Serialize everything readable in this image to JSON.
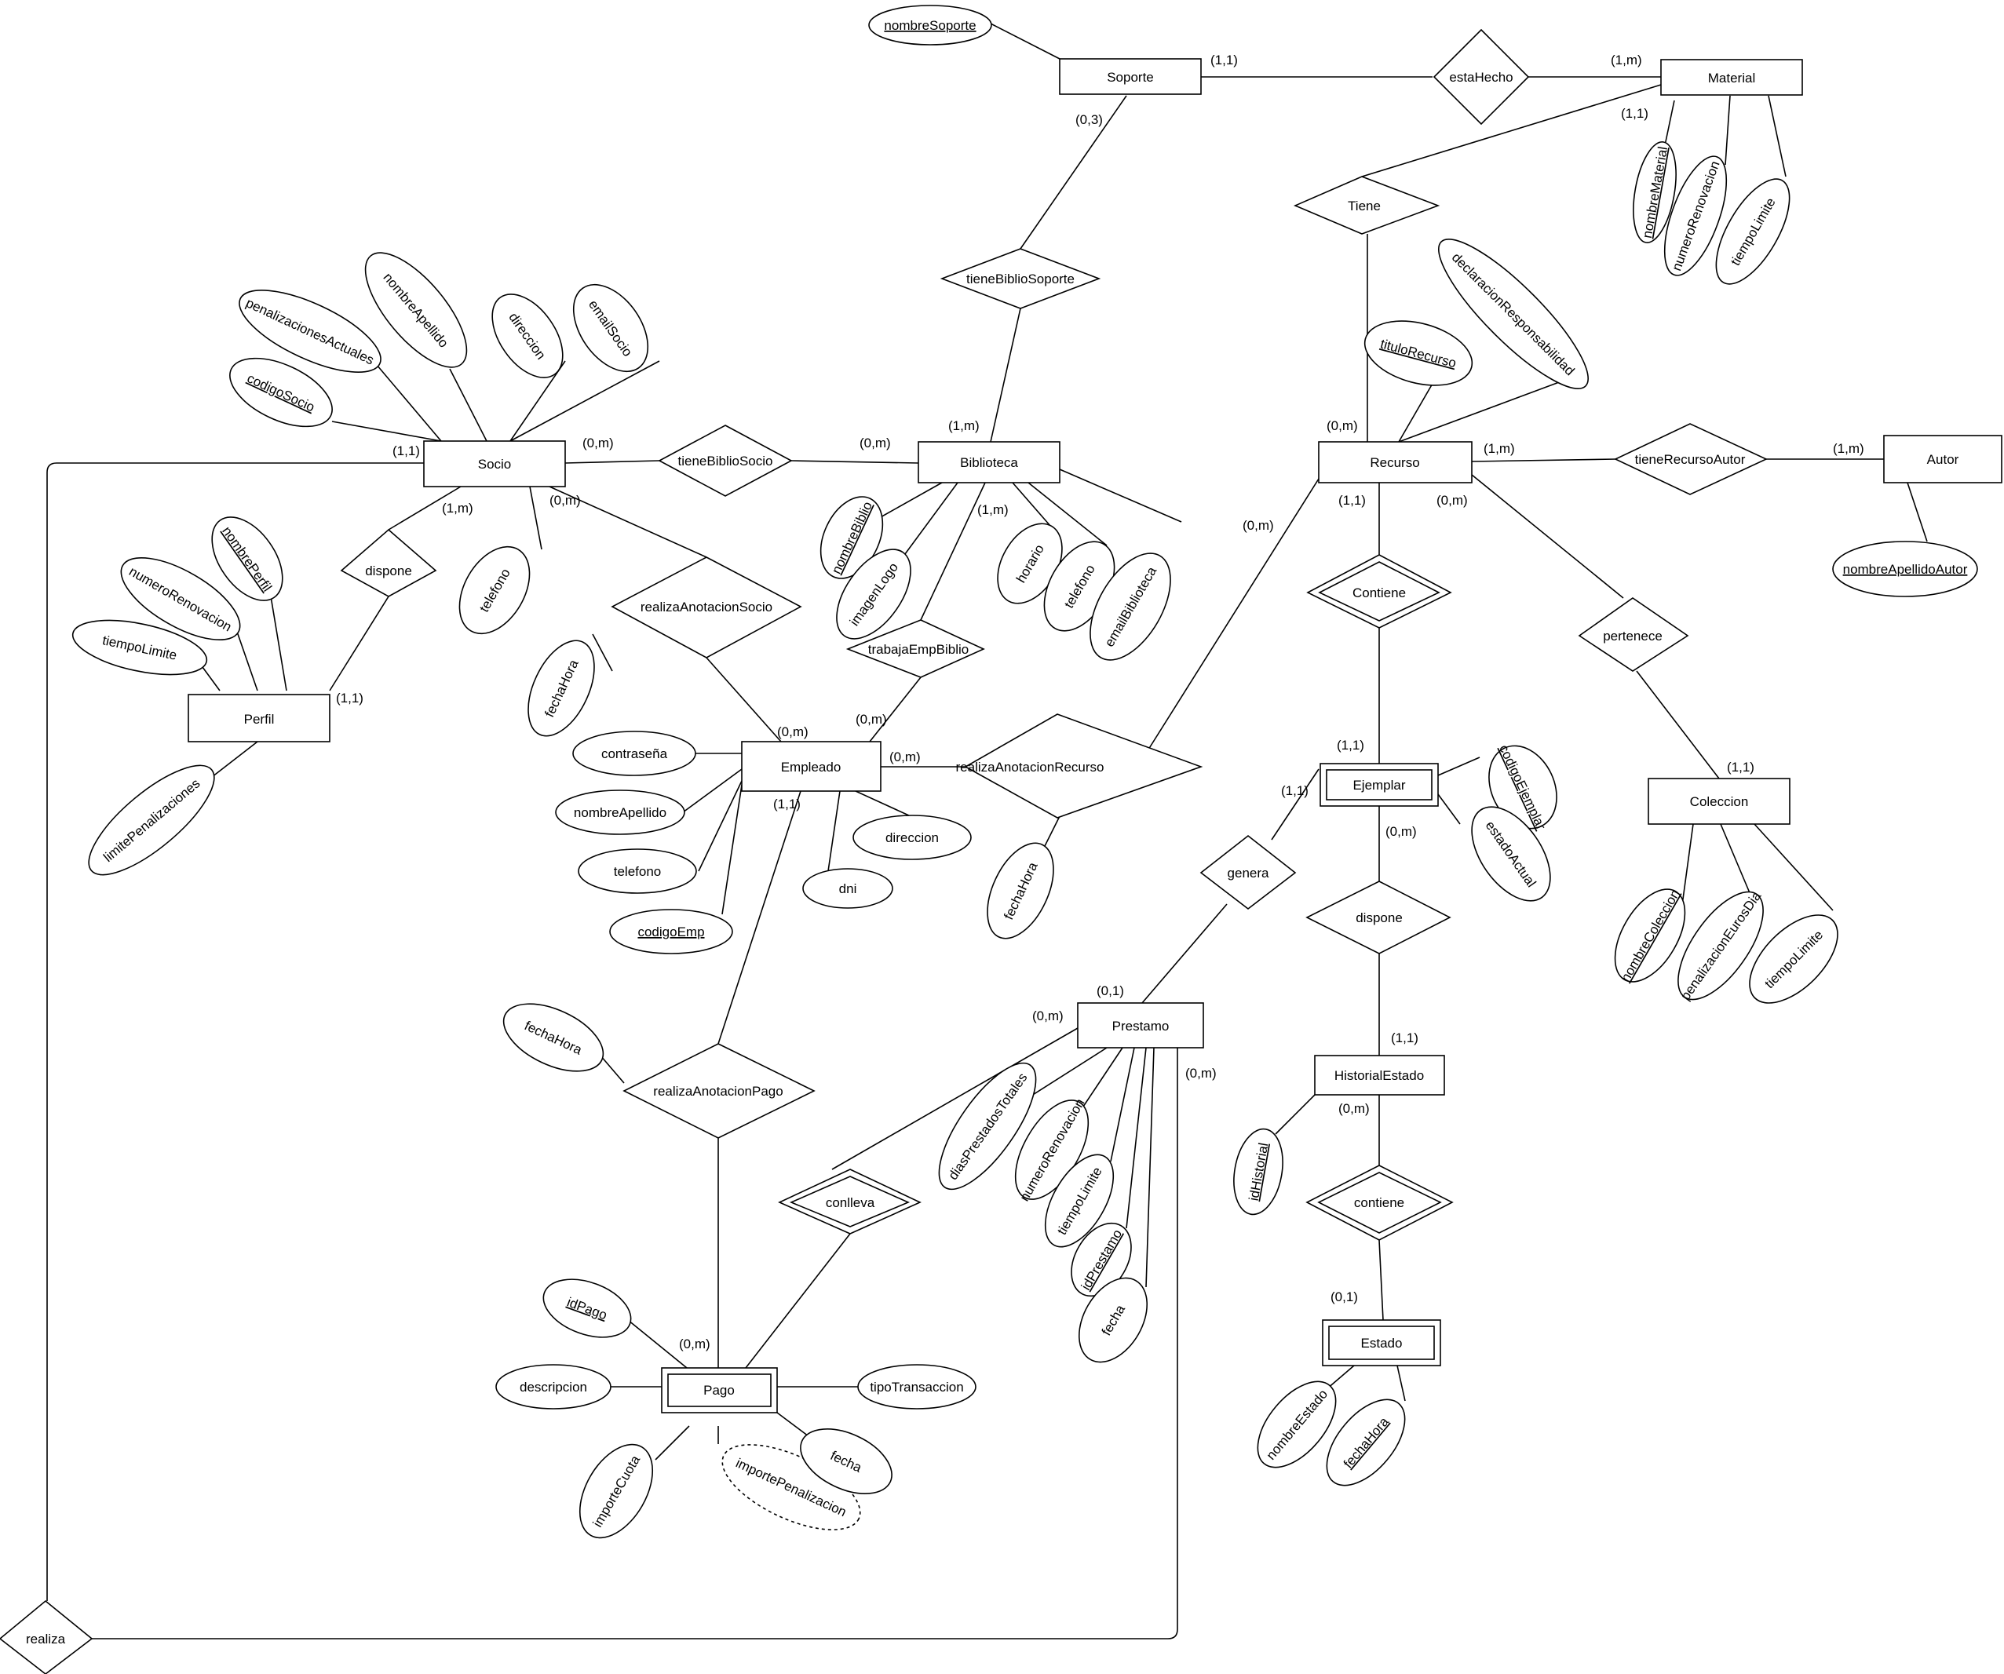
{
  "entities": [
    {
      "id": "soporte",
      "label": "Soporte"
    },
    {
      "id": "material",
      "label": "Material"
    },
    {
      "id": "socio",
      "label": "Socio"
    },
    {
      "id": "biblioteca",
      "label": "Biblioteca"
    },
    {
      "id": "recurso",
      "label": "Recurso"
    },
    {
      "id": "autor",
      "label": "Autor"
    },
    {
      "id": "perfil",
      "label": "Perfil"
    },
    {
      "id": "empleado",
      "label": "Empleado"
    },
    {
      "id": "ejemplar",
      "label": "Ejemplar",
      "weak": true
    },
    {
      "id": "coleccion",
      "label": "Coleccion"
    },
    {
      "id": "prestamo",
      "label": "Prestamo"
    },
    {
      "id": "historial",
      "label": "HistorialEstado"
    },
    {
      "id": "estado",
      "label": "Estado",
      "weak": true
    },
    {
      "id": "pago",
      "label": "Pago",
      "weak": true
    }
  ],
  "relationships": [
    {
      "id": "estaHecho",
      "label": "estaHecho"
    },
    {
      "id": "tiene",
      "label": "Tiene"
    },
    {
      "id": "tieneBiblioSoporte",
      "label": "tieneBiblioSoporte"
    },
    {
      "id": "tieneBiblioSocio",
      "label": "tieneBiblioSocio"
    },
    {
      "id": "tieneRecursoAutor",
      "label": "tieneRecursoAutor"
    },
    {
      "id": "disponePerfil",
      "label": "dispone"
    },
    {
      "id": "realizaAnotacionSocio",
      "label": "realizaAnotacionSocio"
    },
    {
      "id": "trabajaEmpBiblio",
      "label": "trabajaEmpBiblio"
    },
    {
      "id": "contieneRecurso",
      "label": "Contiene",
      "identifying": true
    },
    {
      "id": "pertenece",
      "label": "pertenece"
    },
    {
      "id": "realizaAnotacionRecurso",
      "label": "realizaAnotacionRecurso"
    },
    {
      "id": "genera",
      "label": "genera"
    },
    {
      "id": "disponeEjemplar",
      "label": "dispone"
    },
    {
      "id": "realizaAnotacionPago",
      "label": "realizaAnotacionPago"
    },
    {
      "id": "conlleva",
      "label": "conlleva",
      "identifying": true
    },
    {
      "id": "contieneEstado",
      "label": "contiene",
      "identifying": true
    },
    {
      "id": "realiza",
      "label": "realiza"
    }
  ],
  "attributes": [
    {
      "id": "a_nombreSoporte",
      "label": "nombreSoporte",
      "key": true
    },
    {
      "id": "a_nombreMaterial",
      "label": "nombreMaterial",
      "key": true
    },
    {
      "id": "a_numeroRenovacionMat",
      "label": "numeroRenovacion"
    },
    {
      "id": "a_tiempoLimiteMat",
      "label": "tiempoLimite"
    },
    {
      "id": "a_declaracion",
      "label": "declaracionResponsabilidad"
    },
    {
      "id": "a_tituloRecurso",
      "label": "tituloRecurso",
      "key": true
    },
    {
      "id": "a_nombreApellidoAutor",
      "label": "nombreApellidoAutor",
      "key": true
    },
    {
      "id": "a_penalizacionesActuales",
      "label": "penalizacionesActuales"
    },
    {
      "id": "a_nombreApellidoSocio",
      "label": "nombreApellido"
    },
    {
      "id": "a_direccionSocio",
      "label": "direccion"
    },
    {
      "id": "a_emailSocio",
      "label": "emailSocio"
    },
    {
      "id": "a_codigoSocio",
      "label": "codigoSocio",
      "key": true
    },
    {
      "id": "a_telefonoSocio",
      "label": "telefono"
    },
    {
      "id": "a_nombreBiblio",
      "label": "nombreBiblio",
      "key": true
    },
    {
      "id": "a_imagenLogo",
      "label": "imagenLogo"
    },
    {
      "id": "a_horario",
      "label": "horario"
    },
    {
      "id": "a_telefonoBiblio",
      "label": "telefono"
    },
    {
      "id": "a_emailBiblioteca",
      "label": "emailBiblioteca"
    },
    {
      "id": "a_nombrePerfil",
      "label": "nombrePerfil",
      "key": true
    },
    {
      "id": "a_numeroRenovacionPerfil",
      "label": "numeroRenovacion"
    },
    {
      "id": "a_tiempoLimitePerfil",
      "label": "tiempoLimite"
    },
    {
      "id": "a_limitePenalizaciones",
      "label": "limitePenalizaciones"
    },
    {
      "id": "a_fechaHoraSocio",
      "label": "fechaHora"
    },
    {
      "id": "a_contrasena",
      "label": "contraseña"
    },
    {
      "id": "a_nombreApellidoEmp",
      "label": "nombreApellido"
    },
    {
      "id": "a_telefonoEmp",
      "label": "telefono"
    },
    {
      "id": "a_codigoEmp",
      "label": "codigoEmp",
      "key": true
    },
    {
      "id": "a_dni",
      "label": "dni"
    },
    {
      "id": "a_direccionEmp",
      "label": "direccion"
    },
    {
      "id": "a_fechaHoraRecurso",
      "label": "fechaHora"
    },
    {
      "id": "a_codigoEjemplar",
      "label": "codigoEjemplar",
      "key": true
    },
    {
      "id": "a_estadoActual",
      "label": "estadoActual"
    },
    {
      "id": "a_nombreColeccion",
      "label": "nombreColeccion",
      "key": true
    },
    {
      "id": "a_penalizacionEurosDia",
      "label": "penalizacionEurosDia"
    },
    {
      "id": "a_tiempoLimiteCol",
      "label": "tiempoLimite"
    },
    {
      "id": "a_diasPrestados",
      "label": "diasPrestadosTotales"
    },
    {
      "id": "a_numeroRenovacionPres",
      "label": "numeroRenovacion"
    },
    {
      "id": "a_tiempoLimitePres",
      "label": "tiempoLimite"
    },
    {
      "id": "a_idPrestamo",
      "label": "idPrestamo",
      "key": true
    },
    {
      "id": "a_fechaPres",
      "label": "fecha"
    },
    {
      "id": "a_idHistorial",
      "label": "idHistorial",
      "key": true
    },
    {
      "id": "a_nombreEstado",
      "label": "nombreEstado"
    },
    {
      "id": "a_fechaHoraEstado",
      "label": "fechaHora",
      "key": true
    },
    {
      "id": "a_fechaHoraPago",
      "label": "fechaHora"
    },
    {
      "id": "a_idPago",
      "label": "idPago",
      "key": true
    },
    {
      "id": "a_descripcion",
      "label": "descripcion"
    },
    {
      "id": "a_importeCuota",
      "label": "importeCuota"
    },
    {
      "id": "a_importePenalizacion",
      "label": "importePenalizacion",
      "derived": true
    },
    {
      "id": "a_fechaPago",
      "label": "fecha"
    },
    {
      "id": "a_tipoTransaccion",
      "label": "tipoTransaccion"
    }
  ],
  "cardinalities": [
    {
      "id": "c1",
      "label": "(1,1)"
    },
    {
      "id": "c2",
      "label": "(1,m)"
    },
    {
      "id": "c3",
      "label": "(0,3)"
    },
    {
      "id": "c4",
      "label": "(1,1)"
    },
    {
      "id": "c5",
      "label": "(1,m)"
    },
    {
      "id": "c6",
      "label": "(1,1)"
    },
    {
      "id": "c7",
      "label": "(0,m)"
    },
    {
      "id": "c8",
      "label": "(0,m)"
    },
    {
      "id": "c9",
      "label": "(0,m)"
    },
    {
      "id": "c10",
      "label": "(1,m)"
    },
    {
      "id": "c11",
      "label": "(1,m)"
    },
    {
      "id": "c12",
      "label": "(1,m)"
    },
    {
      "id": "c13",
      "label": "(1,1)"
    },
    {
      "id": "c14",
      "label": "(0,m)"
    },
    {
      "id": "c15",
      "label": "(0,m)"
    },
    {
      "id": "c16",
      "label": "(1,m)"
    },
    {
      "id": "c17",
      "label": "(1,1)"
    },
    {
      "id": "c18",
      "label": "(0,m)"
    },
    {
      "id": "c19",
      "label": "(0,m)"
    },
    {
      "id": "c20",
      "label": "(0,m)"
    },
    {
      "id": "c21",
      "label": "(0,m)"
    },
    {
      "id": "c22",
      "label": "(1,1)"
    },
    {
      "id": "c23",
      "label": "(1,1)"
    },
    {
      "id": "c24",
      "label": "(1,1)"
    },
    {
      "id": "c25",
      "label": "(0,m)"
    },
    {
      "id": "c26",
      "label": "(1,1)"
    },
    {
      "id": "c27",
      "label": "(0,m)"
    },
    {
      "id": "c28",
      "label": "(0,1)"
    },
    {
      "id": "c29",
      "label": "(1,1)"
    },
    {
      "id": "c30",
      "label": "(0,m)"
    },
    {
      "id": "c31",
      "label": "(0,m)"
    },
    {
      "id": "c32",
      "label": "(0,1)"
    }
  ]
}
